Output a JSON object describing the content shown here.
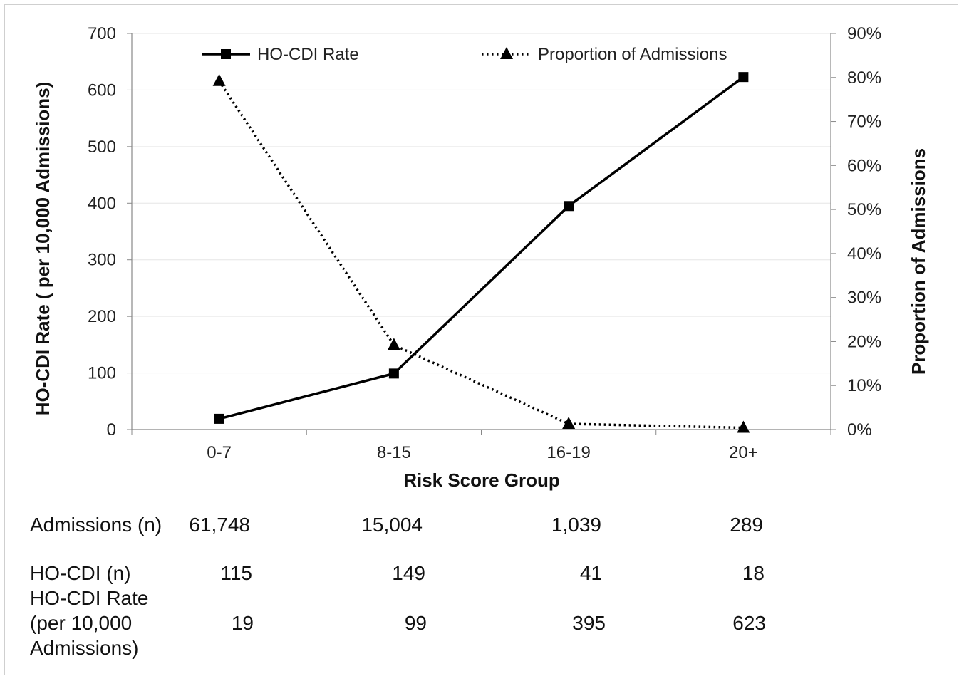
{
  "chart_data": {
    "type": "line",
    "categories": [
      "0-7",
      "8-15",
      "16-19",
      "20+"
    ],
    "xlabel": "Risk Score Group",
    "ylabel_left": "HO-CDI Rate ( per 10,000 Admissions)",
    "ylabel_right": "Proportion of Admissions",
    "ylim_left": [
      0,
      700
    ],
    "yticks_left": [
      "0",
      "100",
      "200",
      "300",
      "400",
      "500",
      "600",
      "700"
    ],
    "ylim_right": [
      0,
      90
    ],
    "yticks_right": [
      "0%",
      "10%",
      "20%",
      "30%",
      "40%",
      "50%",
      "60%",
      "70%",
      "80%",
      "90%"
    ],
    "grid": "horizontal",
    "legend_position": "top",
    "series": [
      {
        "name": "HO-CDI Rate",
        "axis": "left",
        "style": "solid",
        "marker": "square",
        "values": [
          19,
          99,
          395,
          623
        ],
        "color": "#000000"
      },
      {
        "name": "Proportion of Admissions",
        "axis": "right",
        "style": "dotted",
        "marker": "triangle",
        "values": [
          79.2,
          19.2,
          1.3,
          0.4
        ],
        "color": "#000000"
      }
    ]
  },
  "table": {
    "rows": [
      {
        "label": "Admissions  (n)",
        "values": [
          "61,748",
          "15,004",
          "1,039",
          "289"
        ]
      },
      {
        "label": "HO-CDI (n)",
        "values": [
          "115",
          "149",
          "41",
          "18"
        ]
      },
      {
        "label_lines": [
          "HO-CDI Rate",
          "(per 10,000",
          "Admissions)"
        ],
        "values": [
          "19",
          "99",
          "395",
          "623"
        ]
      }
    ]
  }
}
